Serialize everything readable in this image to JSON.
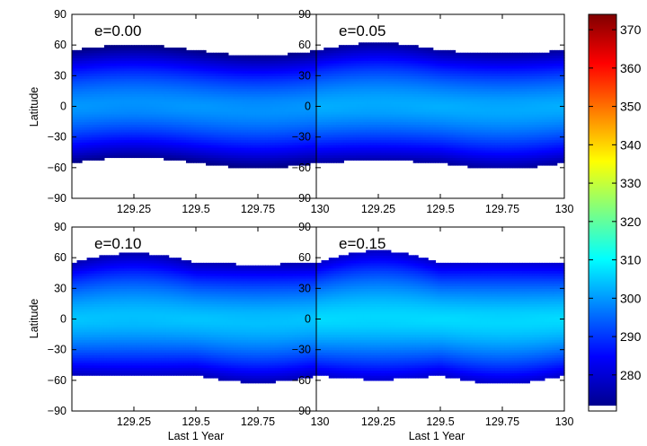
{
  "chart_data": {
    "type": "heatmap",
    "panels": [
      {
        "annotation": "e=0.00",
        "ecc": 0.0
      },
      {
        "annotation": "e=0.05",
        "ecc": 0.05
      },
      {
        "annotation": "e=0.10",
        "ecc": 0.1
      },
      {
        "annotation": "e=0.15",
        "ecc": 0.15
      }
    ],
    "xlabel": "Last 1 Year",
    "ylabel": "Latitude",
    "xlim": [
      129.0,
      130.0
    ],
    "ylim": [
      -90,
      90
    ],
    "x_ticks": [
      129.25,
      129.5,
      129.75,
      130
    ],
    "x_tick_labels": [
      "129.25",
      "129.5",
      "129.75",
      "130"
    ],
    "y_ticks": [
      -90,
      -60,
      -30,
      0,
      30,
      60,
      90
    ],
    "y_tick_labels": [
      "−90",
      "−60",
      "−30",
      "0",
      "30",
      "60",
      "90"
    ],
    "colorbar": {
      "range": [
        272,
        374
      ],
      "ticks": [
        280,
        290,
        300,
        310,
        320,
        330,
        340,
        350,
        360,
        370
      ],
      "tick_labels": [
        "280",
        "290",
        "300",
        "310",
        "320",
        "330",
        "340",
        "350",
        "360",
        "370"
      ],
      "colormap": "jet"
    },
    "grid": false
  }
}
